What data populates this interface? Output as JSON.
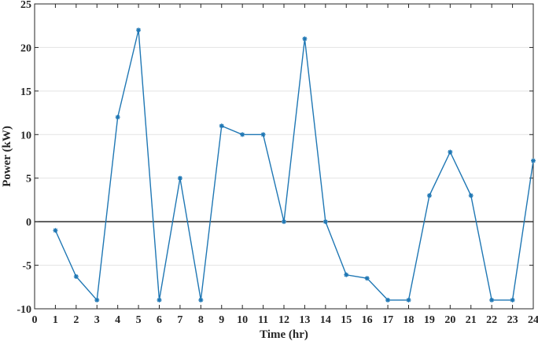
{
  "chart_data": {
    "type": "line",
    "title": "",
    "xlabel": "Time (hr)",
    "ylabel": "Power (kW)",
    "xlim": [
      0,
      24
    ],
    "ylim": [
      -10,
      25
    ],
    "xticks": [
      0,
      1,
      2,
      3,
      4,
      5,
      6,
      7,
      8,
      9,
      10,
      11,
      12,
      13,
      14,
      15,
      16,
      17,
      18,
      19,
      20,
      21,
      22,
      23,
      24
    ],
    "yticks": [
      -10,
      -5,
      0,
      5,
      10,
      15,
      20,
      25
    ],
    "grid": "horizontal",
    "zero_line": true,
    "series": [
      {
        "color": "#1f77b4",
        "marker": "asterisk",
        "x": [
          1,
          2,
          3,
          4,
          5,
          6,
          7,
          8,
          9,
          10,
          11,
          12,
          13,
          14,
          15,
          16,
          17,
          18,
          19,
          20,
          21,
          22,
          23,
          24
        ],
        "y": [
          -1,
          -6.3,
          -9,
          12,
          22,
          -9,
          5,
          -9,
          11,
          10,
          10,
          0,
          21,
          0,
          -6.1,
          -6.5,
          -9,
          -9,
          3,
          8,
          3,
          -9,
          -9,
          7
        ]
      }
    ]
  }
}
